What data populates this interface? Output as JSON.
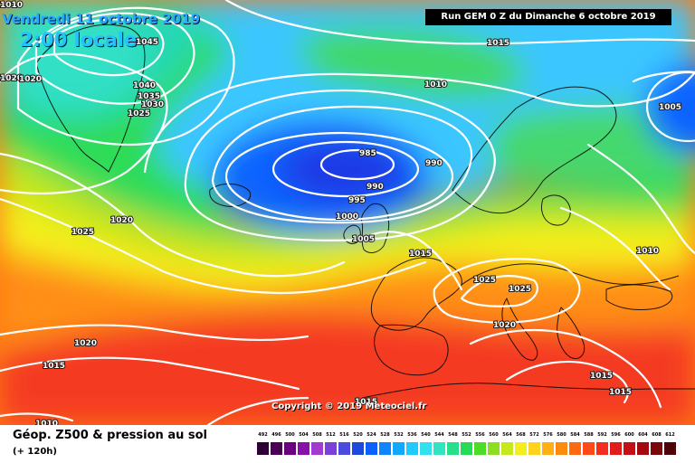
{
  "header": {
    "date": "Vendredi 11 octobre 2019",
    "time": "2:00 locale",
    "run": "Run GEM 0 Z du Dimanche 6 octobre 2019"
  },
  "footer": {
    "copyright": "Copyright © 2019 Meteociel.fr",
    "title": "Géop. Z500 & pression au sol",
    "lead_time": "(+ 120h)"
  },
  "isobar_labels": [
    "1045",
    "1020",
    "1020",
    "1040",
    "1035",
    "1030",
    "1025",
    "1020",
    "1025",
    "1020",
    "1015",
    "1010",
    "1015",
    "1010",
    "1005",
    "985",
    "990",
    "990",
    "995",
    "1000",
    "1005",
    "1015",
    "1025",
    "1025",
    "1020",
    "1010",
    "1015",
    "1015",
    "1015",
    "1010"
  ],
  "legend": {
    "values": [
      "492",
      "496",
      "500",
      "504",
      "508",
      "512",
      "516",
      "520",
      "524",
      "528",
      "532",
      "536",
      "540",
      "544",
      "548",
      "552",
      "556",
      "560",
      "564",
      "568",
      "572",
      "576",
      "580",
      "584",
      "588",
      "592",
      "596",
      "600",
      "604",
      "608",
      "612"
    ],
    "colors": [
      "#2d0036",
      "#4b0058",
      "#6a0080",
      "#8a0fa8",
      "#a23ccf",
      "#7a3fd8",
      "#4b4bdf",
      "#1d49dd",
      "#0a61ff",
      "#0c85ff",
      "#11a8ff",
      "#1fcaff",
      "#33e0ee",
      "#2fe5bf",
      "#25e089",
      "#27dc55",
      "#4ddc27",
      "#8ae020",
      "#c6e81d",
      "#f2ef1c",
      "#ffd21c",
      "#ffb015",
      "#ff8a10",
      "#ff6a10",
      "#ff4a17",
      "#f52d21",
      "#e11c1c",
      "#c60f16",
      "#a30a10",
      "#7a070c",
      "#4d0308"
    ]
  },
  "map_colors": {
    "blue_low": "#1f4ef0",
    "light_blue": "#3cc8ff",
    "green": "#2fdc58",
    "yellow": "#f5f01c",
    "orange": "#ff8f12",
    "red": "#f43a22",
    "isobar": "#ffffff",
    "coastline": "#000000"
  }
}
